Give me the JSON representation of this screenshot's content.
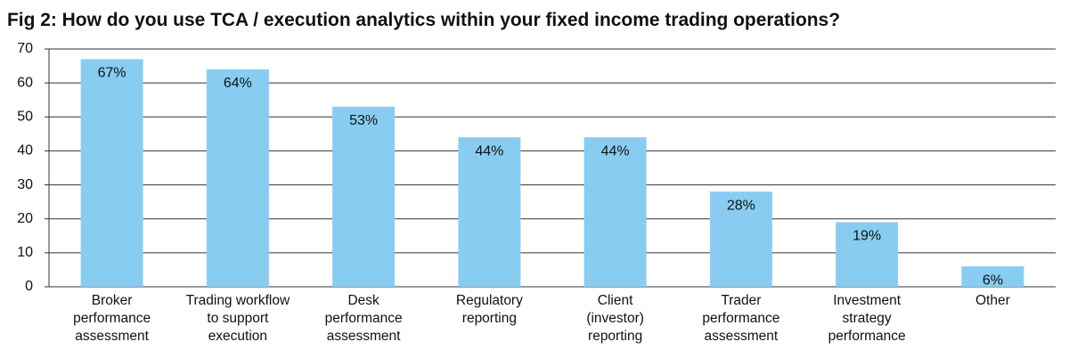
{
  "chart_data": {
    "type": "bar",
    "title": "Fig 2: How do you use TCA / execution analytics within your fixed income trading operations?",
    "categories": [
      [
        "Broker",
        "performance",
        "assessment"
      ],
      [
        "Trading workflow",
        "to support",
        "execution"
      ],
      [
        "Desk",
        "performance",
        "assessment"
      ],
      [
        "Regulatory",
        "reporting"
      ],
      [
        "Client",
        "(investor)",
        "reporting"
      ],
      [
        "Trader",
        "performance",
        "assessment"
      ],
      [
        "Investment",
        "strategy",
        "performance"
      ],
      [
        "Other"
      ]
    ],
    "values": [
      67,
      64,
      53,
      44,
      44,
      28,
      19,
      6
    ],
    "value_labels": [
      "67%",
      "64%",
      "53%",
      "44%",
      "44%",
      "28%",
      "19%",
      "6%"
    ],
    "color": "#88cdf1",
    "ylim": [
      0,
      70
    ],
    "yticks": [
      0,
      10,
      20,
      30,
      40,
      50,
      60,
      70
    ],
    "grid": true
  }
}
